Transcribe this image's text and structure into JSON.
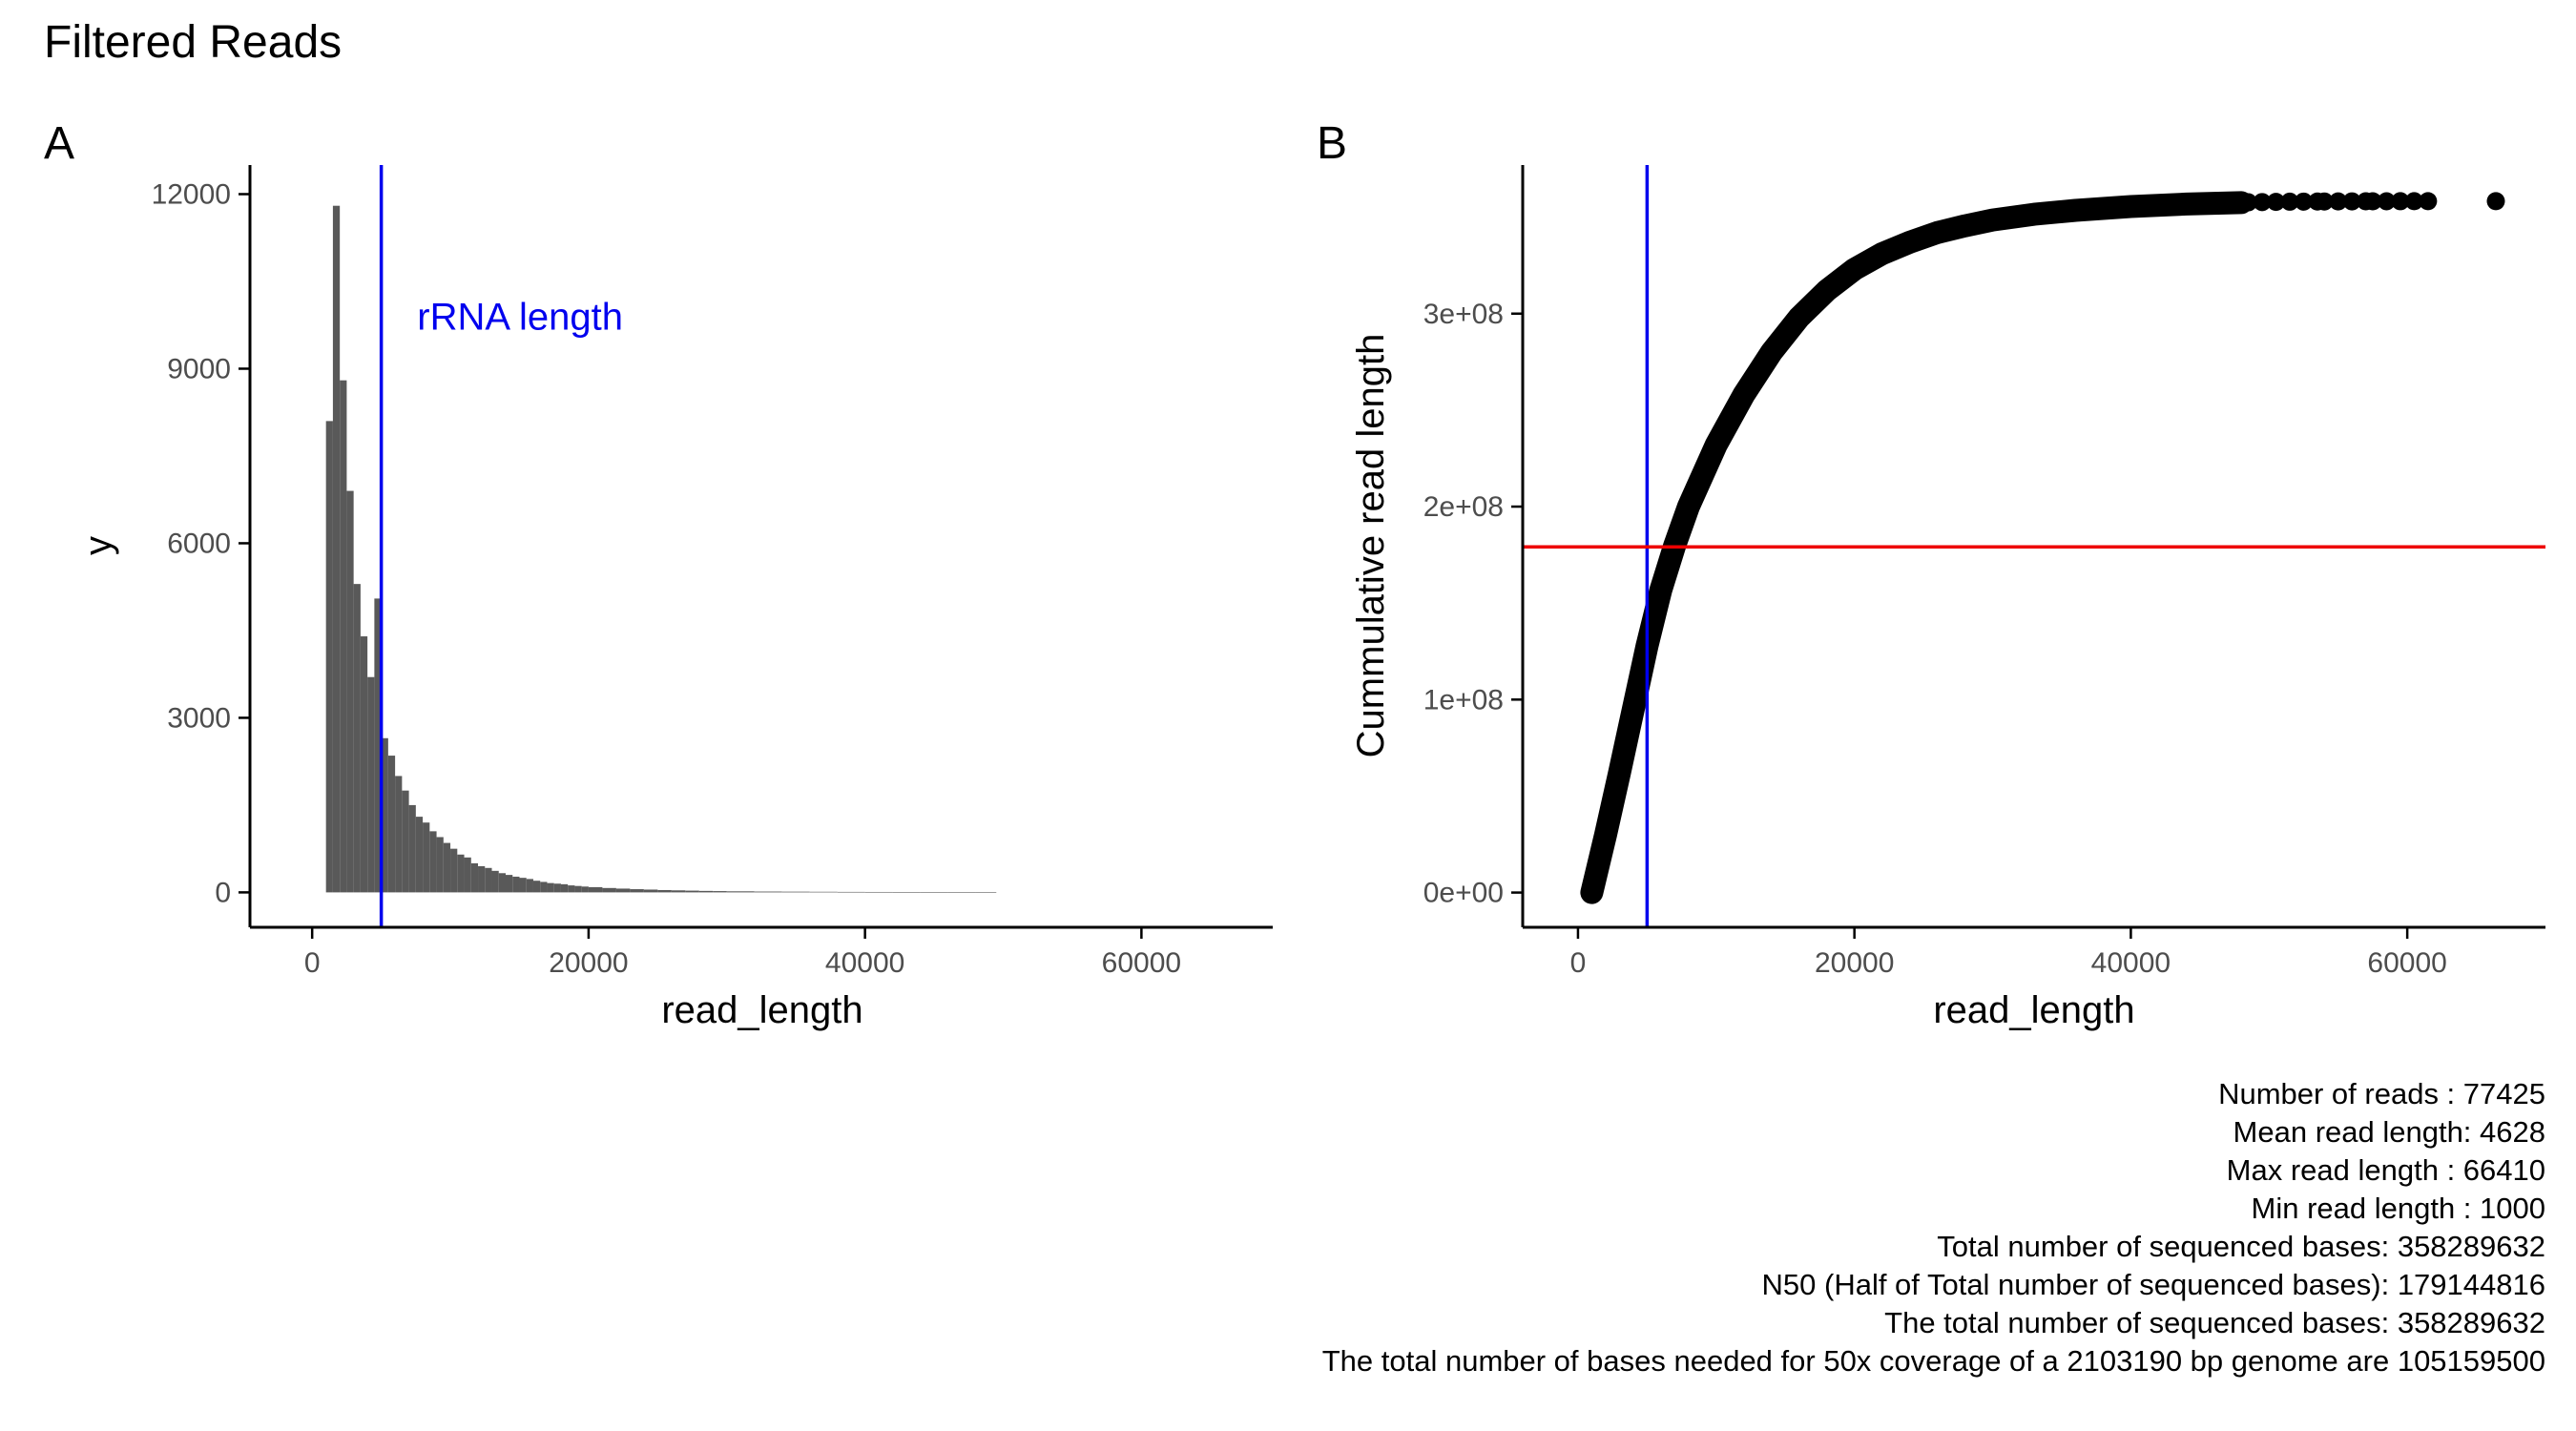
{
  "title": "Filtered Reads",
  "colors": {
    "bar_fill": "#595959",
    "rrna_line": "#0000ee",
    "n50_line": "#ee0000",
    "points": "#000000",
    "axis": "#000000",
    "tick_text": "#4d4d4d"
  },
  "chart_data": [
    {
      "panel": "A",
      "type": "bar",
      "title": "",
      "xlabel": "read_length",
      "ylabel": "y",
      "xlim": [
        -4500,
        69500
      ],
      "ylim": [
        -600,
        12500
      ],
      "x_ticks": [
        0,
        20000,
        40000,
        60000
      ],
      "x_tick_labels": [
        "0",
        "20000",
        "40000",
        "60000"
      ],
      "y_ticks": [
        0,
        3000,
        6000,
        9000,
        12000
      ],
      "y_tick_labels": [
        "0",
        "3000",
        "6000",
        "9000",
        "12000"
      ],
      "bin_width": 500,
      "bin_starts": [
        1000,
        1500,
        2000,
        2500,
        3000,
        3500,
        4000,
        4500,
        5000,
        5500,
        6000,
        6500,
        7000,
        7500,
        8000,
        8500,
        9000,
        9500,
        10000,
        10500,
        11000,
        11500,
        12000,
        12500,
        13000,
        13500,
        14000,
        14500,
        15000,
        15500,
        16000,
        16500,
        17000,
        17500,
        18000,
        18500,
        19000,
        19500,
        20000,
        21000,
        22000,
        23000,
        24000,
        25000,
        26000,
        27000,
        28000,
        29000,
        30000,
        32000,
        34000,
        36000,
        38000,
        40000,
        42000,
        44000,
        46000,
        48000
      ],
      "bin_ends": [
        1500,
        2000,
        2500,
        3000,
        3500,
        4000,
        4500,
        5000,
        5500,
        6000,
        6500,
        7000,
        7500,
        8000,
        8500,
        9000,
        9500,
        10000,
        10500,
        11000,
        11500,
        12000,
        12500,
        13000,
        13500,
        14000,
        14500,
        15000,
        15500,
        16000,
        16500,
        17000,
        17500,
        18000,
        18500,
        19000,
        19500,
        20000,
        21000,
        22000,
        23000,
        24000,
        25000,
        26000,
        27000,
        28000,
        29000,
        30000,
        32000,
        34000,
        36000,
        38000,
        40000,
        42000,
        44000,
        46000,
        48000,
        49500
      ],
      "values": [
        8100,
        11800,
        8800,
        6900,
        5300,
        4400,
        3700,
        5050,
        2650,
        2350,
        2000,
        1750,
        1500,
        1300,
        1200,
        1050,
        950,
        850,
        750,
        650,
        600,
        500,
        450,
        420,
        370,
        330,
        300,
        270,
        250,
        230,
        200,
        180,
        160,
        150,
        140,
        120,
        110,
        100,
        90,
        75,
        65,
        55,
        48,
        40,
        35,
        30,
        25,
        22,
        18,
        14,
        12,
        10,
        8,
        7,
        5,
        5,
        4,
        3
      ],
      "reference_lines": [
        {
          "orientation": "vertical",
          "value": 5000,
          "color": "#0000ee",
          "label": "rRNA length"
        }
      ],
      "annotation": {
        "text": "rRNA length",
        "x": 7600,
        "y": 9900
      }
    },
    {
      "panel": "B",
      "type": "scatter",
      "title": "",
      "xlabel": "read_length",
      "ylabel": "Cummulative read length",
      "xlim": [
        -4000,
        70000
      ],
      "ylim": [
        -18000000,
        377000000
      ],
      "x_ticks": [
        0,
        20000,
        40000,
        60000
      ],
      "x_tick_labels": [
        "0",
        "20000",
        "40000",
        "60000"
      ],
      "y_ticks": [
        0,
        100000000,
        200000000,
        300000000
      ],
      "y_tick_labels": [
        "0e+00",
        "1e+08",
        "2e+08",
        "3e+08"
      ],
      "curve": {
        "x": [
          1000,
          2000,
          3000,
          4000,
          5000,
          6000,
          7000,
          8000,
          10000,
          12000,
          14000,
          16000,
          18000,
          20000,
          22000,
          24000,
          26000,
          28000,
          30000,
          33000,
          36000,
          40000,
          44000,
          48000
        ],
        "y": [
          0,
          30000000,
          62000000,
          95000000,
          128000000,
          157000000,
          180000000,
          200000000,
          232000000,
          258000000,
          280000000,
          298000000,
          312000000,
          323000000,
          331000000,
          337000000,
          342000000,
          345500000,
          348500000,
          351500000,
          353500000,
          355500000,
          356800000,
          357500000
        ]
      },
      "tail_points": {
        "x": [
          48500,
          49500,
          50500,
          51500,
          52500,
          53500,
          54000,
          55000,
          56000,
          57000,
          57500,
          58500,
          59500,
          60500,
          61500,
          66410
        ],
        "y": [
          357700000,
          357800000,
          357900000,
          358000000,
          358050000,
          358100000,
          358120000,
          358150000,
          358180000,
          358200000,
          358210000,
          358230000,
          358250000,
          358260000,
          358270000,
          358289632
        ]
      },
      "reference_lines": [
        {
          "orientation": "vertical",
          "value": 5000,
          "color": "#0000ee"
        },
        {
          "orientation": "horizontal",
          "value": 179144816,
          "color": "#ee0000"
        }
      ]
    }
  ],
  "stats": [
    "Number of reads : 77425",
    "Mean read length: 4628",
    "Max read length : 66410",
    "Min read length : 1000",
    "Total number of sequenced bases: 358289632",
    "N50 (Half of Total number of sequenced bases): 179144816",
    "The total number of sequenced bases: 358289632",
    "The total number of bases needed for 50x coverage of a 2103190 bp genome are  105159500"
  ]
}
